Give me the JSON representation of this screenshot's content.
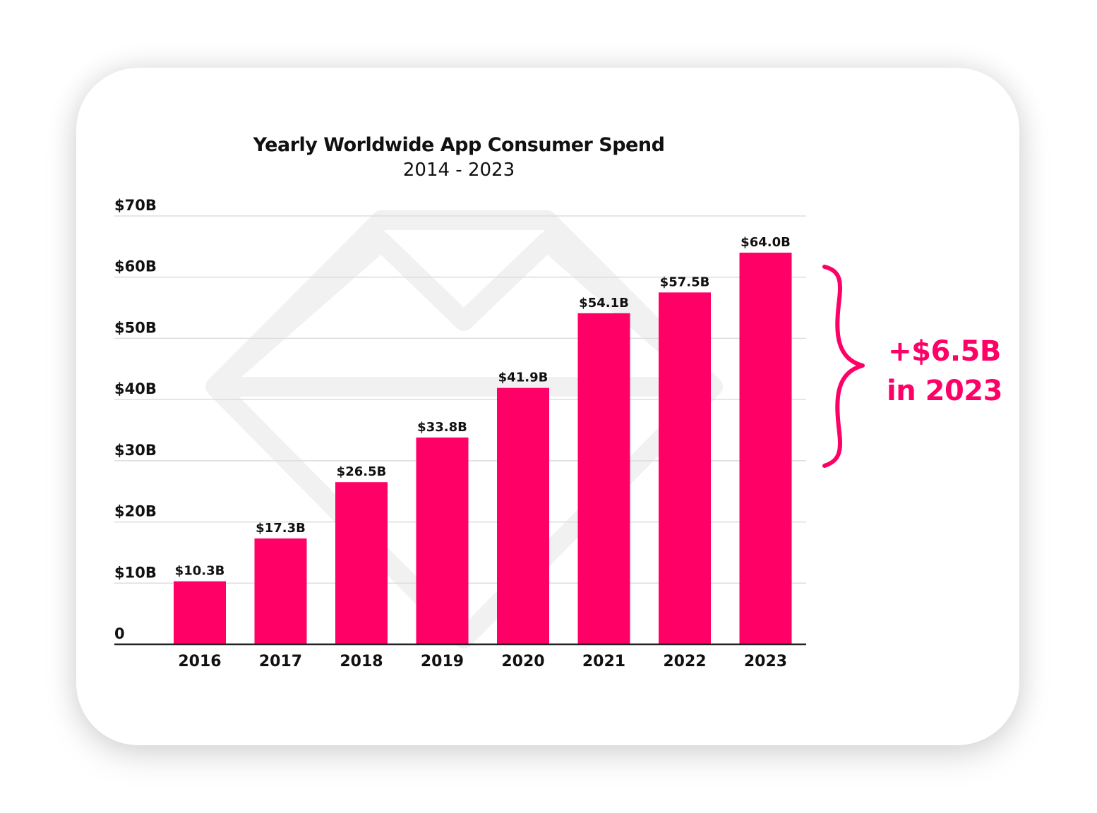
{
  "chart_data": {
    "type": "bar",
    "title": "Yearly Worldwide App Consumer Spend",
    "subtitle": "2014 - 2023",
    "categories": [
      "2016",
      "2017",
      "2018",
      "2019",
      "2020",
      "2021",
      "2022",
      "2023"
    ],
    "values": [
      10.3,
      17.3,
      26.5,
      33.8,
      41.9,
      54.1,
      57.5,
      64.0
    ],
    "data_labels": [
      "$10.3B",
      "$17.3B",
      "$26.5B",
      "$33.8B",
      "$41.9B",
      "$54.1B",
      "$57.5B",
      "$64.0B"
    ],
    "ylim": [
      0,
      70
    ],
    "yticks": [
      0,
      10,
      20,
      30,
      40,
      50,
      60,
      70
    ],
    "ytick_labels": [
      "0",
      "$10B",
      "$20B",
      "$30B",
      "$40B",
      "$50B",
      "$60B",
      "$70B"
    ],
    "grid": true,
    "bar_color": "#ff0066",
    "annotation": {
      "line1": "+$6.5B",
      "line2": "in 2023",
      "color": "#ff0066"
    }
  }
}
